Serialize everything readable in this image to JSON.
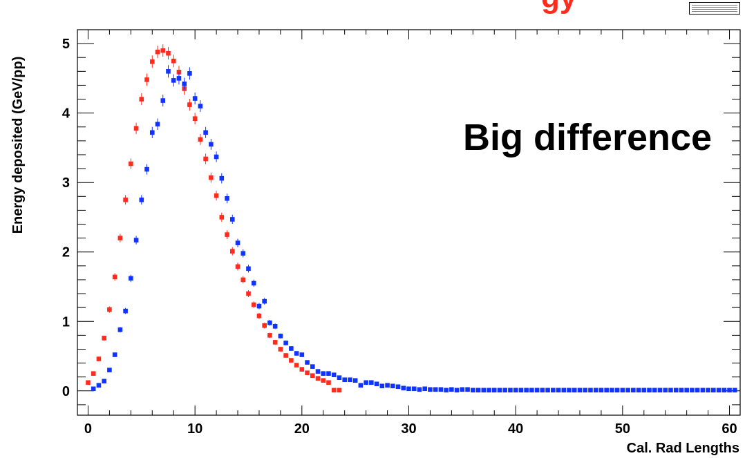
{
  "title_fragment": "gy",
  "annotation": "Big difference",
  "chart_data": {
    "type": "scatter",
    "title": "",
    "xlabel": "Cal. Rad Lengths",
    "ylabel": "Energy deposited (GeV/pp)",
    "xlim": [
      -1,
      61
    ],
    "ylim": [
      -0.35,
      5.2
    ],
    "xticks": [
      0,
      10,
      20,
      30,
      40,
      50,
      60
    ],
    "yticks": [
      0,
      1,
      2,
      3,
      4,
      5
    ],
    "grid": false,
    "colors": {
      "red": "#ff2b1c",
      "blue": "#1133ff"
    },
    "series": [
      {
        "color": "red",
        "x": [
          0,
          0.5,
          1,
          1.5,
          2,
          2.5,
          3,
          3.5,
          4,
          4.5,
          5,
          5.5,
          6,
          6.5,
          7,
          7.5,
          8,
          8.5,
          9,
          9.5,
          10,
          10.5,
          11,
          11.5,
          12,
          12.5,
          13,
          13.5,
          14,
          14.5,
          15,
          15.5,
          16,
          16.5,
          17,
          17.5,
          18,
          18.5,
          19,
          19.5,
          20,
          20.5,
          21,
          21.5,
          22,
          22.5,
          23,
          23.5
        ],
        "y": [
          0.12,
          0.25,
          0.46,
          0.76,
          1.17,
          1.64,
          2.2,
          2.75,
          3.27,
          3.78,
          4.2,
          4.48,
          4.74,
          4.88,
          4.9,
          4.86,
          4.75,
          4.59,
          4.35,
          4.12,
          3.92,
          3.62,
          3.34,
          3.07,
          2.81,
          2.5,
          2.25,
          2.01,
          1.79,
          1.6,
          1.4,
          1.24,
          1.08,
          0.94,
          0.8,
          0.7,
          0.6,
          0.51,
          0.44,
          0.37,
          0.31,
          0.26,
          0.22,
          0.18,
          0.15,
          0.12,
          0.01,
          0.01
        ]
      },
      {
        "color": "blue",
        "x": [
          0.5,
          1,
          1.5,
          2,
          2.5,
          3,
          3.5,
          4,
          4.5,
          5,
          5.5,
          6,
          6.5,
          7,
          7.5,
          8,
          8.5,
          9,
          9.5,
          10,
          10.5,
          11,
          11.5,
          12,
          12.5,
          13,
          13.5,
          14,
          14.5,
          15,
          15.5,
          16,
          16.5,
          17,
          17.5,
          18,
          18.5,
          19,
          19.5,
          20,
          20.5,
          21,
          21.5,
          22,
          22.5,
          23,
          23.5,
          24,
          24.5,
          25,
          25.5,
          26,
          26.5,
          27,
          27.5,
          28,
          28.5,
          29,
          29.5,
          30,
          30.5,
          31,
          31.5,
          32,
          32.5,
          33,
          33.5,
          34,
          34.5,
          35,
          35.5,
          36,
          36.5,
          37,
          37.5,
          38,
          38.5,
          39,
          39.5,
          40,
          40.5,
          41,
          41.5,
          42,
          42.5,
          43,
          43.5,
          44,
          44.5,
          45,
          45.5,
          46,
          46.5,
          47,
          47.5,
          48,
          48.5,
          49,
          49.5,
          50,
          50.5,
          51,
          51.5,
          52,
          52.5,
          53,
          53.5,
          54,
          54.5,
          55,
          55.5,
          56,
          56.5,
          57,
          57.5,
          58,
          58.5,
          59,
          59.5,
          60,
          60.5
        ],
        "y": [
          0.03,
          0.08,
          0.14,
          0.3,
          0.52,
          0.88,
          1.15,
          1.62,
          2.17,
          2.75,
          3.19,
          3.72,
          3.84,
          4.18,
          4.6,
          4.47,
          4.5,
          4.42,
          4.57,
          4.21,
          4.1,
          3.72,
          3.55,
          3.37,
          3.06,
          2.77,
          2.47,
          2.13,
          1.98,
          1.76,
          1.55,
          1.22,
          1.29,
          0.98,
          0.93,
          0.79,
          0.69,
          0.61,
          0.54,
          0.52,
          0.41,
          0.35,
          0.28,
          0.25,
          0.25,
          0.23,
          0.19,
          0.16,
          0.16,
          0.15,
          0.08,
          0.12,
          0.12,
          0.1,
          0.07,
          0.08,
          0.07,
          0.06,
          0.04,
          0.03,
          0.03,
          0.02,
          0.03,
          0.02,
          0.02,
          0.02,
          0.01,
          0.02,
          0.01,
          0.02,
          0.02,
          0.01,
          0.01,
          0.01,
          0.01,
          0.01,
          0.01,
          0.01,
          0.01,
          0.01,
          0.01,
          0.01,
          0.01,
          0.01,
          0.01,
          0.01,
          0.01,
          0.01,
          0.01,
          0.01,
          0.01,
          0.01,
          0.01,
          0.01,
          0.01,
          0.01,
          0.01,
          0.01,
          0.01,
          0.01,
          0.01,
          0.01,
          0.01,
          0.01,
          0.01,
          0.01,
          0.01,
          0.01,
          0.01,
          0.01,
          0.01,
          0.01,
          0.01,
          0.01,
          0.01,
          0.01,
          0.01,
          0.01,
          0.01,
          0.01,
          0.01
        ]
      }
    ]
  }
}
